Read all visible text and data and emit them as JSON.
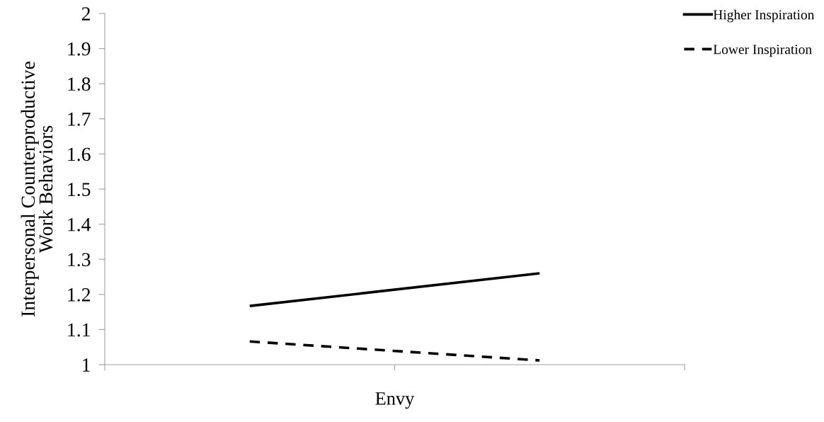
{
  "chart_data": {
    "type": "line",
    "xlabel": "Envy",
    "ylabel": "Interpersonal Counterproductive\nWork Behaviors",
    "categories": [
      null,
      null
    ],
    "series": [
      {
        "name": "Higher Inspiration",
        "color": "#000000",
        "values": [
          1.167,
          1.26
        ],
        "line_style": "solid"
      },
      {
        "name": "Lower Inspiration",
        "color": "#000000",
        "values": [
          1.066,
          1.012
        ],
        "line_style": "dashed"
      }
    ],
    "ylim": [
      1,
      2
    ],
    "yticks": [
      1,
      1.1,
      1.2,
      1.3,
      1.4,
      1.5,
      1.6,
      1.7,
      1.8,
      1.9,
      2
    ],
    "grid": false,
    "legend": "top right",
    "marker": "none"
  }
}
